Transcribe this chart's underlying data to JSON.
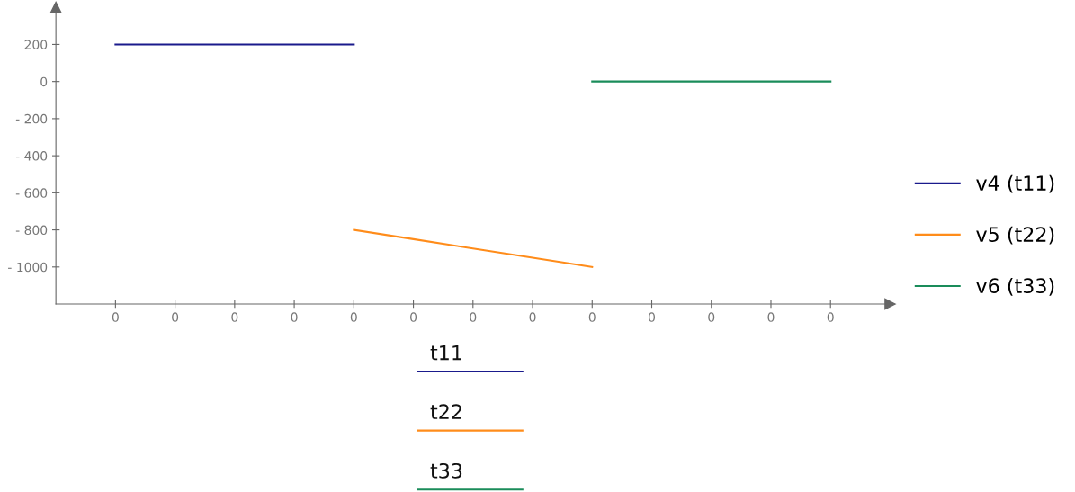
{
  "chart_data": {
    "type": "line",
    "categories": [
      "0",
      "0",
      "0",
      "0",
      "0",
      "0",
      "0",
      "0",
      "0",
      "0",
      "0",
      "0",
      "0"
    ],
    "series": [
      {
        "name": "v4 (t11)",
        "color": "#1a1a8c",
        "values": [
          200,
          200,
          200,
          200,
          200,
          null,
          null,
          null,
          null,
          null,
          null,
          null,
          null
        ]
      },
      {
        "name": "v5 (t22)",
        "color": "#ff8c1a",
        "values": [
          null,
          null,
          null,
          null,
          -800,
          -850,
          -900,
          -950,
          -1000,
          null,
          null,
          null,
          null
        ]
      },
      {
        "name": "v6 (t33)",
        "color": "#1a8c5a",
        "values": [
          null,
          null,
          null,
          null,
          null,
          null,
          null,
          null,
          0,
          0,
          0,
          0,
          0
        ]
      }
    ],
    "ylim": [
      -1200,
      400
    ],
    "yticks": [
      200,
      0,
      {
        "value": -200,
        "label": "- 200"
      },
      {
        "value": -400,
        "label": "- 400"
      },
      {
        "value": -600,
        "label": "- 600"
      },
      {
        "value": -800,
        "label": "- 800"
      },
      {
        "value": -1000,
        "label": "- 1000"
      }
    ],
    "legend": "right",
    "grid": false,
    "line_style": "solid",
    "marker": "none",
    "annotations": [
      "t11",
      "t22",
      "t33"
    ]
  }
}
